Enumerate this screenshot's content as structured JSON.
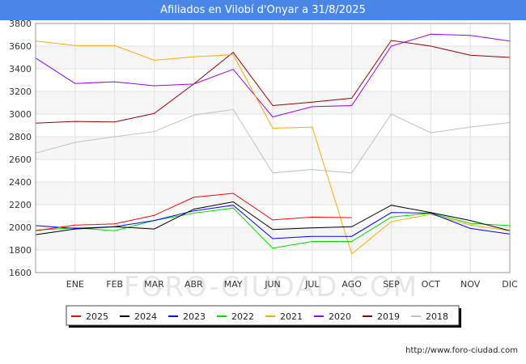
{
  "header": {
    "title": "Afiliados en Vilobí d'Onyar a 31/8/2025"
  },
  "footer": {
    "source": "http://www.foro-ciudad.com"
  },
  "watermark": "FORO-CIUDAD.COM",
  "chart_data": {
    "type": "line",
    "title": "Afiliados en Vilobí d'Onyar a 31/8/2025",
    "categories": [
      "",
      "ENE",
      "FEB",
      "MAR",
      "ABR",
      "MAY",
      "JUN",
      "JUL",
      "AGO",
      "SEP",
      "OCT",
      "NOV",
      "DIC"
    ],
    "ylim": [
      1600,
      3800
    ],
    "yticks": [
      1600,
      1800,
      2000,
      2200,
      2400,
      2600,
      2800,
      3000,
      3200,
      3400,
      3600,
      3800
    ],
    "grid": true,
    "legend_position": "bottom",
    "series": [
      {
        "name": "2025",
        "color": "#ff0000",
        "values": [
          1970,
          2020,
          2030,
          2105,
          2265,
          2300,
          2065,
          2090,
          2085,
          null,
          null,
          null,
          null
        ]
      },
      {
        "name": "2024",
        "color": "#000000",
        "values": [
          1935,
          1985,
          2005,
          1985,
          2160,
          2225,
          1980,
          1995,
          2005,
          2195,
          2130,
          2060,
          1970
        ]
      },
      {
        "name": "2023",
        "color": "#0000ff",
        "values": [
          2015,
          1990,
          2005,
          2060,
          2145,
          2195,
          1900,
          1920,
          1920,
          2130,
          2125,
          1990,
          1940
        ]
      },
      {
        "name": "2022",
        "color": "#00dd00",
        "values": [
          1975,
          1995,
          1970,
          2060,
          2125,
          2170,
          1815,
          1875,
          1875,
          2090,
          2125,
          2035,
          2015
        ]
      },
      {
        "name": "2021",
        "color": "#ffaa00",
        "values": [
          3645,
          3605,
          3605,
          3475,
          3505,
          3525,
          2875,
          2885,
          1765,
          2050,
          2115,
          2020,
          1970
        ]
      },
      {
        "name": "2020",
        "color": "#9900ff",
        "values": [
          3495,
          3270,
          3285,
          3250,
          3265,
          3395,
          2975,
          3065,
          3075,
          3600,
          3705,
          3695,
          3645
        ]
      },
      {
        "name": "2019",
        "color": "#990000",
        "values": [
          2920,
          2935,
          2930,
          3005,
          3265,
          3545,
          3075,
          3105,
          3140,
          3650,
          3600,
          3520,
          3500
        ]
      },
      {
        "name": "2018",
        "color": "#c0c0c0",
        "values": [
          2655,
          2750,
          2800,
          2845,
          2990,
          3040,
          2480,
          2510,
          2480,
          3000,
          2835,
          2885,
          2925
        ]
      }
    ]
  }
}
